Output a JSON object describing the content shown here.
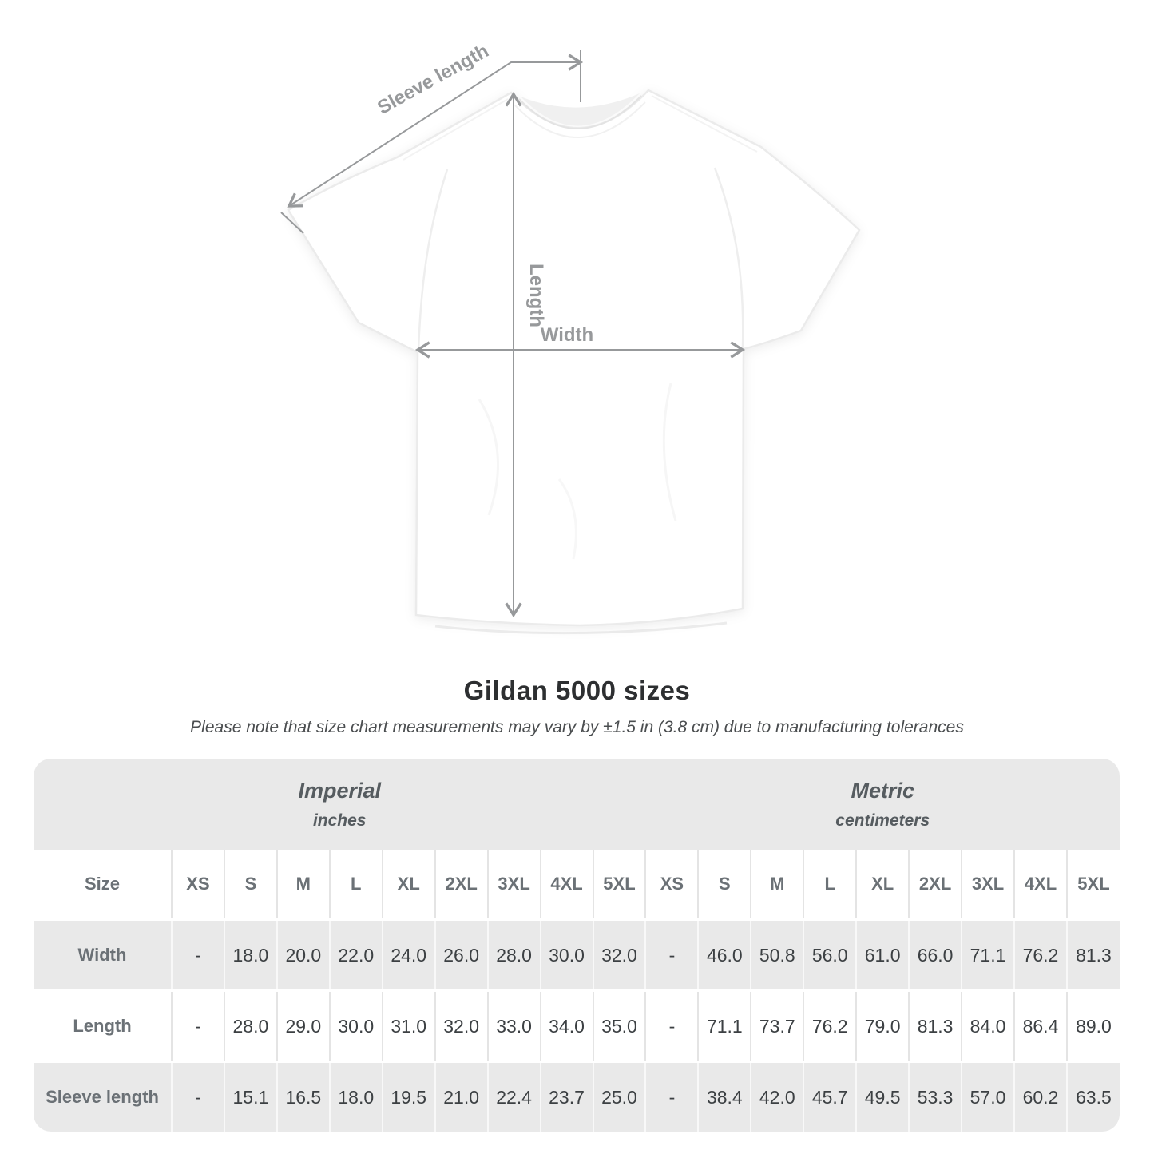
{
  "title": "Gildan 5000 sizes",
  "subtitle": "Please note that size chart measurements may vary by ±1.5 in (3.8 cm) due to manufacturing tolerances",
  "diagram": {
    "sleeve_length_label": "Sleeve length",
    "length_label": "Length",
    "width_label": "Width"
  },
  "chart_data": {
    "type": "table",
    "title": "Gildan 5000 sizes",
    "note": "Measurements may vary by ±1.5 in (3.8 cm)",
    "size_column_header": "Size",
    "column_groups": [
      {
        "label": "Imperial",
        "unit": "inches",
        "span": 10
      },
      {
        "label": "Metric",
        "unit": "centimeters",
        "span": 9
      }
    ],
    "sizes": [
      "XS",
      "S",
      "M",
      "L",
      "XL",
      "2XL",
      "3XL",
      "4XL",
      "5XL"
    ],
    "rows": [
      {
        "label": "Width",
        "imperial": [
          "-",
          "18.0",
          "20.0",
          "22.0",
          "24.0",
          "26.0",
          "28.0",
          "30.0",
          "32.0"
        ],
        "metric": [
          "-",
          "46.0",
          "50.8",
          "56.0",
          "61.0",
          "66.0",
          "71.1",
          "76.2",
          "81.3"
        ]
      },
      {
        "label": "Length",
        "imperial": [
          "-",
          "28.0",
          "29.0",
          "30.0",
          "31.0",
          "32.0",
          "33.0",
          "34.0",
          "35.0"
        ],
        "metric": [
          "-",
          "71.1",
          "73.7",
          "76.2",
          "79.0",
          "81.3",
          "84.0",
          "86.4",
          "89.0"
        ]
      },
      {
        "label": "Sleeve length",
        "imperial": [
          "-",
          "15.1",
          "16.5",
          "18.0",
          "19.5",
          "21.0",
          "22.4",
          "23.7",
          "25.0"
        ],
        "metric": [
          "-",
          "38.4",
          "42.0",
          "45.7",
          "49.5",
          "53.3",
          "57.0",
          "60.2",
          "63.5"
        ]
      }
    ]
  },
  "colors": {
    "page_background": "#ffffff",
    "table_stripe_gray": "#e9e9e9",
    "label_text": "#6b7176",
    "value_text": "#3c4043",
    "title_text": "#2d2f31",
    "measurement_gray": "#97999b"
  }
}
